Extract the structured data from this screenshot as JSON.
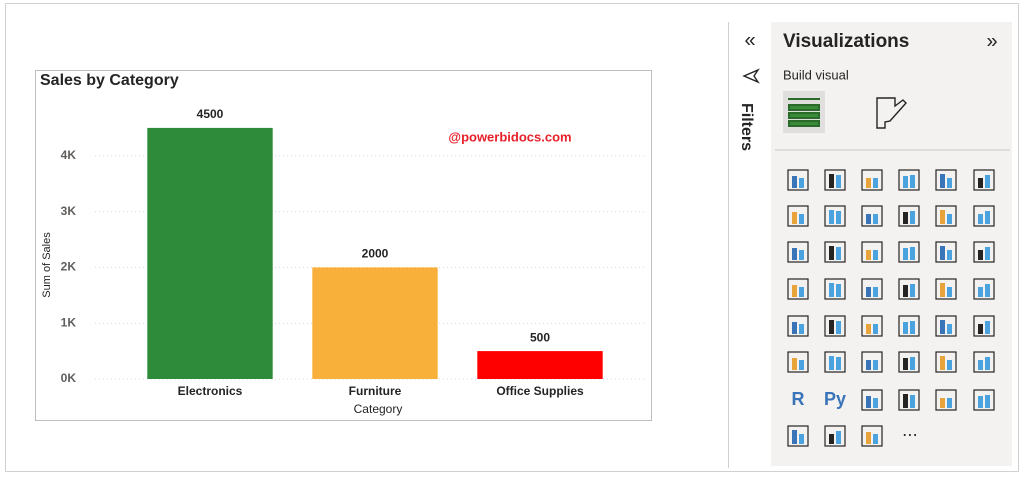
{
  "chart_data": {
    "type": "bar",
    "title": "Sales by Category",
    "x_label": "Category",
    "y_label": "Sum of Sales",
    "annotation": "@powerbidocs.com",
    "categories": [
      "Electronics",
      "Furniture",
      "Office Supplies"
    ],
    "values": [
      4500,
      2000,
      500
    ],
    "colors": [
      "#2e8b3a",
      "#f9b03a",
      "#ff0000"
    ],
    "ylim": [
      0,
      5000
    ],
    "yticks": [
      {
        "value": 0,
        "label": "0K"
      },
      {
        "value": 1000,
        "label": "1K"
      },
      {
        "value": 2000,
        "label": "2K"
      },
      {
        "value": 3000,
        "label": "3K"
      },
      {
        "value": 4000,
        "label": "4K"
      }
    ],
    "grid": true
  },
  "panel": {
    "title": "Visualizations",
    "subtitle": "Build visual",
    "filters": "Filters",
    "more": "⋯",
    "icon_labels": [
      "R",
      "Py"
    ]
  }
}
